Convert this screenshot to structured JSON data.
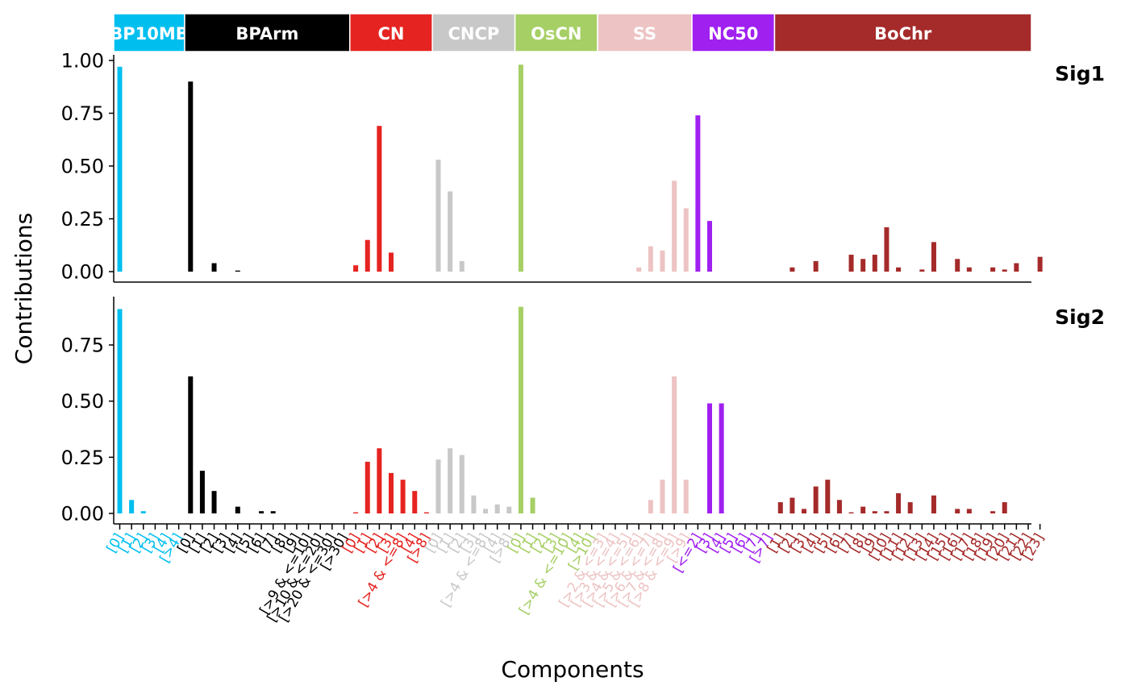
{
  "chart_data": {
    "type": "bar",
    "xlabel": "Components",
    "ylabel": "Contributions",
    "groups": [
      {
        "name": "BP10MB",
        "label": "BP10MB",
        "color": "#00BFEF",
        "count": 6,
        "ticks": [
          "[0]",
          "[1]",
          "[2]",
          "[3]",
          "[4]",
          "[>4]"
        ]
      },
      {
        "name": "BPArm",
        "label": "BPArm",
        "color": "#000000",
        "count": 14,
        "ticks": [
          "[0]",
          "[1]",
          "[2]",
          "[3]",
          "[4]",
          "[5]",
          "[6]",
          "[7]",
          "[8]",
          "[9]",
          "[>9 & <=10]",
          "[>10 & <=20]",
          "[>20 & <=30]",
          "[>30]"
        ]
      },
      {
        "name": "CN",
        "label": "CN",
        "color": "#E52421",
        "count": 7,
        "ticks": [
          "[0]",
          "[1]",
          "[2]",
          "[3]",
          "[>4 & <=8]",
          "[4]",
          "[>8]"
        ]
      },
      {
        "name": "CNCP",
        "label": "CNCP",
        "color": "#C8C8C8",
        "count": 7,
        "ticks": [
          "[0]",
          "[1]",
          "[2]",
          "[3]",
          "[>4 & <=8]",
          "[4]",
          "[>8]"
        ]
      },
      {
        "name": "OsCN",
        "label": "OsCN",
        "color": "#A6CF65",
        "count": 7,
        "ticks": [
          "[0]",
          "[1]",
          "[2]",
          "[3]",
          "[>4 & <=10]",
          "[4]",
          "[>10]"
        ]
      },
      {
        "name": "SS",
        "label": "SS",
        "color": "#EDC3C3",
        "count": 8,
        "ticks": [
          "[>2 & <=3]",
          "[>3 & <=4]",
          "[>4 & <=5]",
          "[>5 & <=6]",
          "[>6 & <=7]",
          "[>7 & <=8]",
          "[>8 & <=9]",
          "[>9]"
        ]
      },
      {
        "name": "NC50",
        "label": "NC50",
        "color": "#A020F0",
        "count": 7,
        "ticks": [
          "[<=2]",
          "[3]",
          "[4]",
          "[5]",
          "[6]",
          "[7]",
          "[>7]"
        ]
      },
      {
        "name": "BoChr",
        "label": "BoChr",
        "color": "#A52A2A",
        "count": 23,
        "ticks": [
          "[1]",
          "[2]",
          "[3]",
          "[4]",
          "[5]",
          "[6]",
          "[7]",
          "[8]",
          "[9]",
          "[10]",
          "[11]",
          "[12]",
          "[13]",
          "[14]",
          "[15]",
          "[16]",
          "[17]",
          "[18]",
          "[19]",
          "[20]",
          "[21]",
          "[22]",
          "[23]"
        ]
      }
    ],
    "series": [
      {
        "name": "Sig1",
        "ylim": [
          0,
          1.0
        ],
        "yticks": [
          "0.00",
          "0.25",
          "0.50",
          "0.75",
          "1.00"
        ],
        "values": [
          0.97,
          0,
          0,
          0,
          0,
          0,
          0.9,
          0,
          0.04,
          0,
          0.005,
          0,
          0,
          0,
          0,
          0,
          0,
          0,
          0,
          0,
          0.03,
          0.15,
          0.69,
          0.09,
          0,
          0,
          0,
          0.53,
          0.38,
          0.05,
          0,
          0,
          0,
          0,
          0.98,
          0,
          0,
          0,
          0,
          0,
          0,
          0,
          0,
          0,
          0.02,
          0.12,
          0.1,
          0.43,
          0.3,
          0.74,
          0.24,
          0,
          0,
          0,
          0,
          0,
          0,
          0.02,
          0,
          0.05,
          0,
          0,
          0.08,
          0.06,
          0.08,
          0.21,
          0.02,
          0,
          0.01,
          0.14,
          0,
          0.06,
          0.02,
          0,
          0.02,
          0.01,
          0.04,
          0,
          0.07
        ]
      },
      {
        "name": "Sig2",
        "ylim": [
          0,
          0.95
        ],
        "yticks": [
          "0.00",
          "0.25",
          "0.50",
          "0.75"
        ],
        "values": [
          0.91,
          0.06,
          0.01,
          0,
          0,
          0,
          0.61,
          0.19,
          0.1,
          0,
          0.03,
          0,
          0.01,
          0.01,
          0,
          0,
          0,
          0,
          0,
          0,
          0.005,
          0.23,
          0.29,
          0.18,
          0.15,
          0.1,
          0.005,
          0.24,
          0.29,
          0.26,
          0.08,
          0.02,
          0.04,
          0.03,
          0.92,
          0.07,
          0,
          0,
          0,
          0,
          0,
          0,
          0,
          0,
          0,
          0.06,
          0.15,
          0.61,
          0.15,
          0,
          0.49,
          0.49,
          0,
          0,
          0,
          0,
          0.05,
          0.07,
          0.02,
          0.12,
          0.15,
          0.06,
          0.005,
          0.03,
          0.01,
          0.01,
          0.09,
          0.05,
          0,
          0.08,
          0,
          0.02,
          0.02,
          0,
          0.01,
          0.05,
          0,
          0,
          0
        ]
      }
    ]
  }
}
